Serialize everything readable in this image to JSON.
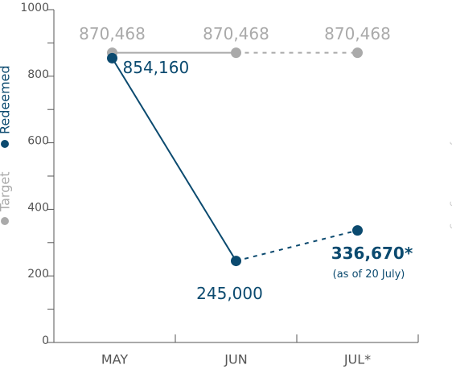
{
  "chart_data": {
    "type": "line",
    "categories": [
      "MAY",
      "JUN",
      "JUL*"
    ],
    "series": [
      {
        "name": "Target",
        "color": "#aaaaaa",
        "values": [
          870.468,
          870.468,
          870.468
        ],
        "value_labels": [
          "870,468",
          "870,468",
          "870,468"
        ]
      },
      {
        "name": "Redeemed",
        "color": "#0b4a6f",
        "values": [
          854.16,
          245,
          336.67
        ],
        "value_labels": [
          "854,160",
          "245,000",
          "336,670*"
        ]
      }
    ],
    "annotations": [
      "(as of 20 July)",
      "*Cycle still ongoing"
    ],
    "ylim": [
      0,
      1000
    ],
    "yticks": [
      0,
      200,
      400,
      600,
      800,
      1000
    ],
    "yminorticks": [
      100,
      300,
      500,
      700,
      900
    ],
    "dashed_last_segment": true,
    "legend": "left"
  }
}
